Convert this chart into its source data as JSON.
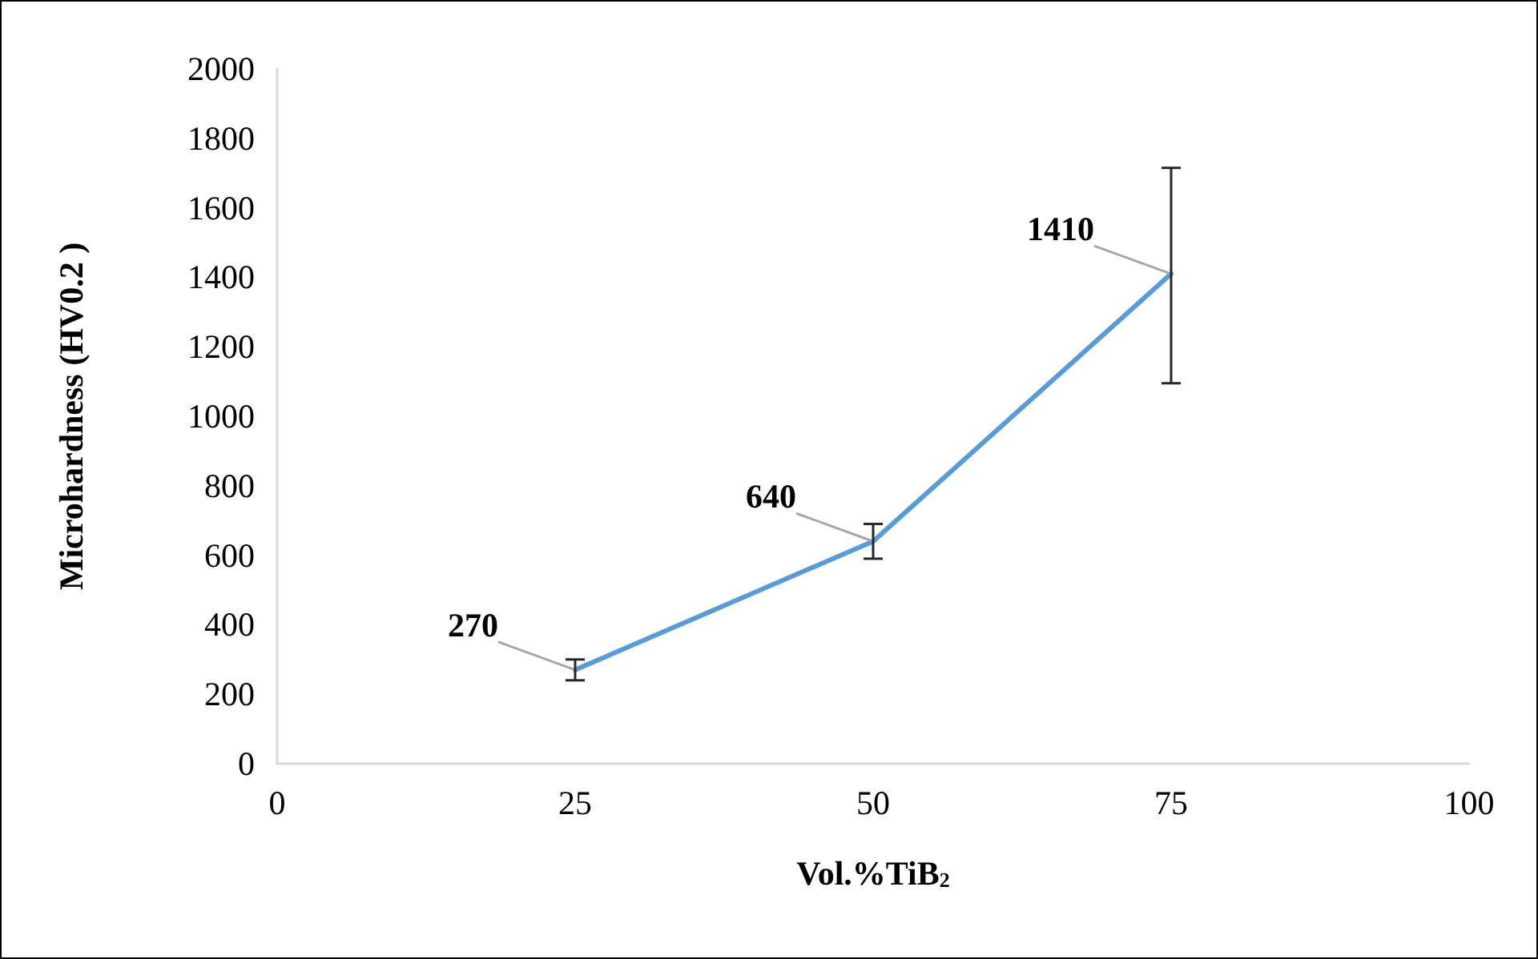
{
  "chart_data": {
    "type": "line",
    "xlabel": "Vol.%TiB$_{2}$",
    "ylabel": "Microhardness (HV0.2 )",
    "x": [
      25,
      50,
      75
    ],
    "series": [
      {
        "color": "#5b9bd5",
        "values": [
          270,
          640,
          1410
        ],
        "errors": [
          [
            240,
            300
          ],
          [
            590,
            690
          ],
          [
            1095,
            1715
          ]
        ]
      }
    ],
    "xlim": [
      0,
      100
    ],
    "xticks": [
      0,
      25,
      50,
      75,
      100
    ],
    "ylim": [
      0,
      2000
    ],
    "yticks": [
      0,
      200,
      400,
      600,
      800,
      1000,
      1200,
      1400,
      1600,
      1800,
      2000
    ],
    "grid": false,
    "marker": "none",
    "line_style": "solid",
    "data_labels": true
  }
}
